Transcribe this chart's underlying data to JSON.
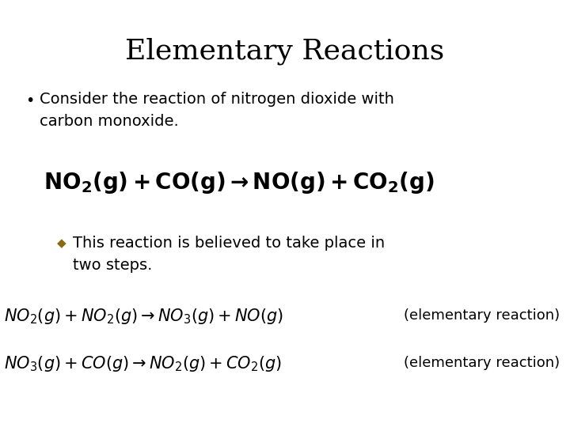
{
  "title": "Elementary Reactions",
  "background_color": "#ffffff",
  "title_fontsize": 26,
  "title_color": "#000000",
  "title_font": "serif",
  "bullet_fontsize": 14,
  "bullet_color": "#000000",
  "bullet_marker": "•",
  "diamond_color": "#8B6914",
  "sub_bullet_fontsize": 14,
  "main_eq_fontsize": 20,
  "eq1_fontsize": 15,
  "eq1_label": "(elementary reaction)",
  "eq2_fontsize": 15,
  "eq2_label": "(elementary reaction)",
  "label_fontsize": 13
}
